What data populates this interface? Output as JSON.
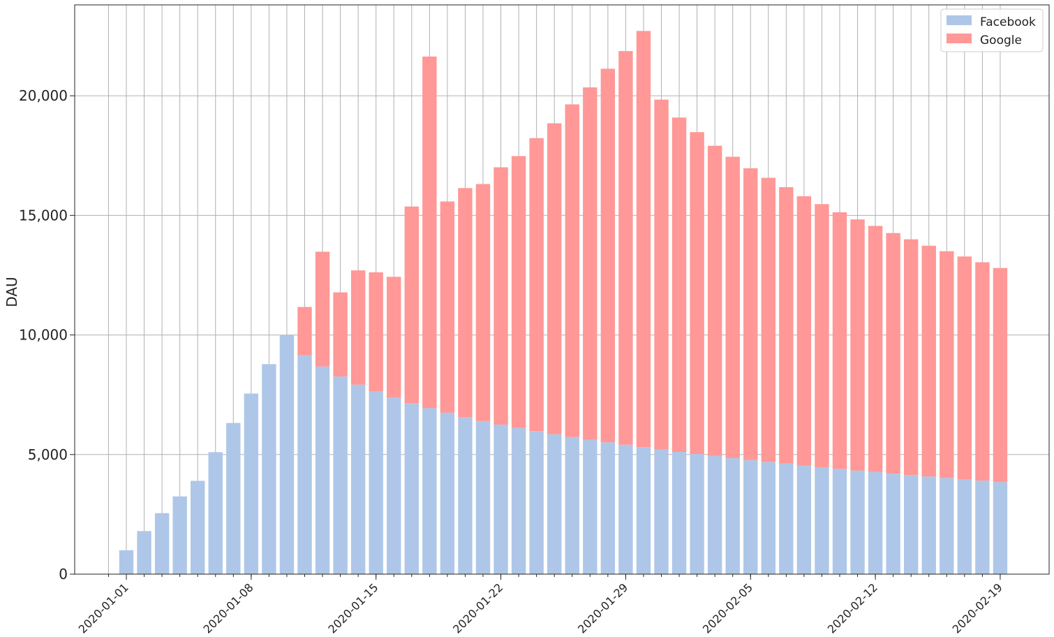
{
  "chart_data": {
    "type": "bar",
    "stacked": true,
    "title": "",
    "xlabel": "",
    "ylabel": "DAU",
    "ylim": [
      0,
      23800
    ],
    "grid": true,
    "legend_position": "top-right",
    "x_start": "2019-12-31",
    "x_end": "2020-02-19",
    "x_tick_labels": [
      "2020-01-01",
      "2020-01-08",
      "2020-01-15",
      "2020-01-22",
      "2020-01-29",
      "2020-02-05",
      "2020-02-12",
      "2020-02-19"
    ],
    "y_tick_labels": [
      "0",
      "5,000",
      "10,000",
      "15,000",
      "20,000"
    ],
    "y_ticks": [
      0,
      5000,
      10000,
      15000,
      20000
    ],
    "series": [
      {
        "name": "Facebook",
        "color": "#aec7e8",
        "values": [
          1000,
          1800,
          2550,
          3250,
          3900,
          5100,
          6320,
          7550,
          8780,
          10000,
          9150,
          8680,
          8260,
          7920,
          7640,
          7380,
          7150,
          6940,
          6750,
          6570,
          6400,
          6250,
          6110,
          5980,
          5850,
          5730,
          5620,
          5510,
          5410,
          5310,
          5210,
          5110,
          5020,
          4940,
          4850,
          4770,
          4690,
          4620,
          4540,
          4470,
          4400,
          4330,
          4270,
          4200,
          4140,
          4080,
          4020,
          3960,
          3910,
          3850
        ]
      },
      {
        "name": "Google",
        "color": "#ff9896",
        "values": [
          0,
          0,
          0,
          0,
          0,
          0,
          0,
          0,
          0,
          0,
          2020,
          4800,
          3520,
          4780,
          4980,
          5050,
          8220,
          14700,
          8830,
          9570,
          9910,
          10760,
          11370,
          12250,
          13000,
          13910,
          14730,
          15620,
          16460,
          17400,
          14630,
          13980,
          13460,
          12970,
          12600,
          12200,
          11880,
          11560,
          11260,
          11000,
          10730,
          10500,
          10290,
          10060,
          9860,
          9650,
          9480,
          9320,
          9130,
          8950
        ]
      }
    ]
  }
}
